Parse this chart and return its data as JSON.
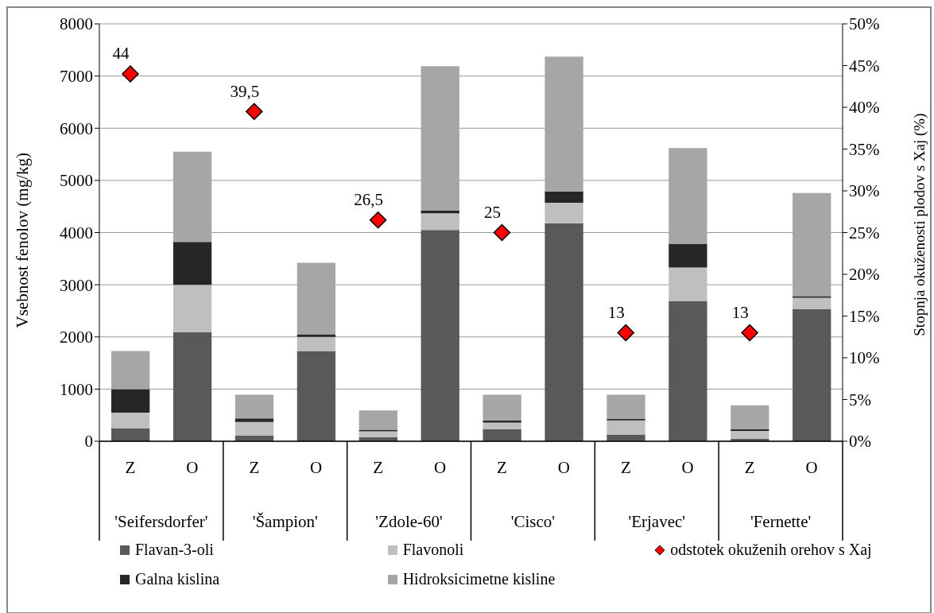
{
  "chart_data": {
    "type": "bar",
    "stacked": true,
    "categories": [
      "Z",
      "O",
      "Z",
      "O",
      "Z",
      "O",
      "Z",
      "O",
      "Z",
      "O",
      "Z",
      "O"
    ],
    "ylabel": "Vsebnost fenolov (mg/kg)",
    "y2label": "Stopnja okuženosti plodov s Xaj (%)",
    "ylim": [
      0,
      8000
    ],
    "yticks": [
      0,
      1000,
      2000,
      3000,
      4000,
      5000,
      6000,
      7000,
      8000
    ],
    "y2lim": [
      0,
      50
    ],
    "y2ticks": [
      {
        "value": 0,
        "label": "0%"
      },
      {
        "value": 5,
        "label": "5%"
      },
      {
        "value": 10,
        "label": "10%"
      },
      {
        "value": 15,
        "label": "15%"
      },
      {
        "value": 20,
        "label": "20%"
      },
      {
        "value": 25,
        "label": "25%"
      },
      {
        "value": 30,
        "label": "30%"
      },
      {
        "value": 35,
        "label": "35%"
      },
      {
        "value": 40,
        "label": "40%"
      },
      {
        "value": 45,
        "label": "45%"
      },
      {
        "value": 50,
        "label": "50%"
      }
    ],
    "grid": "y",
    "legend": "bottom",
    "annotations": [
      "'Seifersdorfer'",
      "'Šampion'",
      "'Zdole-60'",
      "'Cisco'",
      "'Erjavec'",
      "'Fernette'"
    ],
    "series": [
      {
        "name": "Flavan-3-oli",
        "color": "#595959",
        "values": [
          250,
          2090,
          110,
          1730,
          80,
          4050,
          230,
          4180,
          130,
          2690,
          50,
          2530
        ]
      },
      {
        "name": "Flavonoli",
        "color": "#bfbfbf",
        "values": [
          300,
          910,
          260,
          270,
          110,
          320,
          130,
          390,
          270,
          640,
          150,
          220
        ]
      },
      {
        "name": "Galna kislina",
        "color": "#262626",
        "values": [
          450,
          820,
          70,
          50,
          30,
          50,
          40,
          220,
          30,
          450,
          30,
          30
        ]
      },
      {
        "name": "Hidroksicimetne kisline",
        "color": "#a6a6a6",
        "values": [
          730,
          1730,
          450,
          1370,
          370,
          2770,
          490,
          2580,
          460,
          1840,
          460,
          1980
        ]
      },
      {
        "name": "odstotek okuženih orehov s Xaj",
        "type": "scatter",
        "axis": "y2",
        "marker": "diamond",
        "color": "#ff0000",
        "values": [
          44,
          null,
          39.5,
          null,
          26.5,
          null,
          25,
          null,
          13,
          null,
          13,
          null
        ],
        "value_labels": [
          "44",
          null,
          "39,5",
          null,
          "26,5",
          null,
          "25",
          null,
          "13",
          null,
          "13",
          null
        ]
      }
    ]
  }
}
